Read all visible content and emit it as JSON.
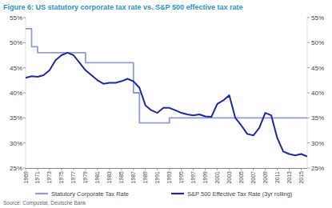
{
  "chart_data": {
    "type": "line",
    "title": "Figure 6: US statutory corporate tax rate vs. S&P 500 effective tax rate",
    "source": "Source: Compustat, Deutsche Bank",
    "x": [
      1969,
      1970,
      1971,
      1972,
      1973,
      1974,
      1975,
      1976,
      1977,
      1978,
      1979,
      1980,
      1981,
      1982,
      1983,
      1984,
      1985,
      1986,
      1987,
      1988,
      1989,
      1990,
      1991,
      1992,
      1993,
      1994,
      1995,
      1996,
      1997,
      1998,
      1999,
      2000,
      2001,
      2002,
      2003,
      2004,
      2005,
      2006,
      2007,
      2008,
      2009,
      2010,
      2011,
      2012,
      2013,
      2014,
      2015,
      2016
    ],
    "series": [
      {
        "name": "Statutory Corporate Tax Rate",
        "color": "#8e9dd6",
        "line_style": "step",
        "values": [
          52.8,
          49.2,
          48,
          48,
          48,
          48,
          48,
          48,
          48,
          48,
          46,
          46,
          46,
          46,
          46,
          46,
          46,
          46,
          40,
          34,
          34,
          34,
          34,
          34,
          35,
          35,
          35,
          35,
          35,
          35,
          35,
          35,
          35,
          35,
          35,
          35,
          35,
          35,
          35,
          35,
          35,
          35,
          35,
          35,
          35,
          35,
          35,
          35
        ]
      },
      {
        "name": "S&P 500 Effective Tax Rate (3yr rolling)",
        "color": "#1f2a9e",
        "line_style": "solid",
        "values": [
          43,
          43.3,
          43.2,
          43.5,
          44.5,
          46.5,
          47.5,
          48,
          47.5,
          46,
          44.5,
          43.5,
          42.5,
          41.8,
          42,
          42,
          42.3,
          42.8,
          42.3,
          41,
          37.5,
          36.5,
          36,
          37,
          37,
          36.5,
          36,
          35.7,
          35.5,
          35.7,
          35.3,
          35.2,
          37.8,
          38.5,
          39.5,
          35,
          33.5,
          31.8,
          31.5,
          33,
          36,
          35.5,
          31,
          28.3,
          27.8,
          27.5,
          27.8,
          27.3
        ]
      }
    ],
    "xlim": [
      1969,
      2016
    ],
    "xticks": [
      1969,
      1971,
      1973,
      1975,
      1977,
      1979,
      1981,
      1983,
      1985,
      1987,
      1989,
      1991,
      1993,
      1995,
      1997,
      1999,
      2001,
      2003,
      2005,
      2007,
      2009,
      2011,
      2013,
      2015
    ],
    "ylim": [
      25,
      55
    ],
    "yticks": [
      {
        "value": 25,
        "label": "25%"
      },
      {
        "value": 30,
        "label": "30%"
      },
      {
        "value": 35,
        "label": "35%"
      },
      {
        "value": 40,
        "label": "40%"
      },
      {
        "value": 45,
        "label": "45%"
      },
      {
        "value": 50,
        "label": "50%"
      },
      {
        "value": 55,
        "label": "55%"
      }
    ],
    "y2lim": [
      25,
      55
    ],
    "y2ticks": [
      {
        "value": 25,
        "label": "25%"
      },
      {
        "value": 30,
        "label": "30%"
      },
      {
        "value": 35,
        "label": "35%"
      },
      {
        "value": 40,
        "label": "40%"
      },
      {
        "value": 45,
        "label": "45%"
      },
      {
        "value": 50,
        "label": "50%"
      },
      {
        "value": 55,
        "label": "55%"
      }
    ],
    "grid": false,
    "legend": "bottom"
  }
}
